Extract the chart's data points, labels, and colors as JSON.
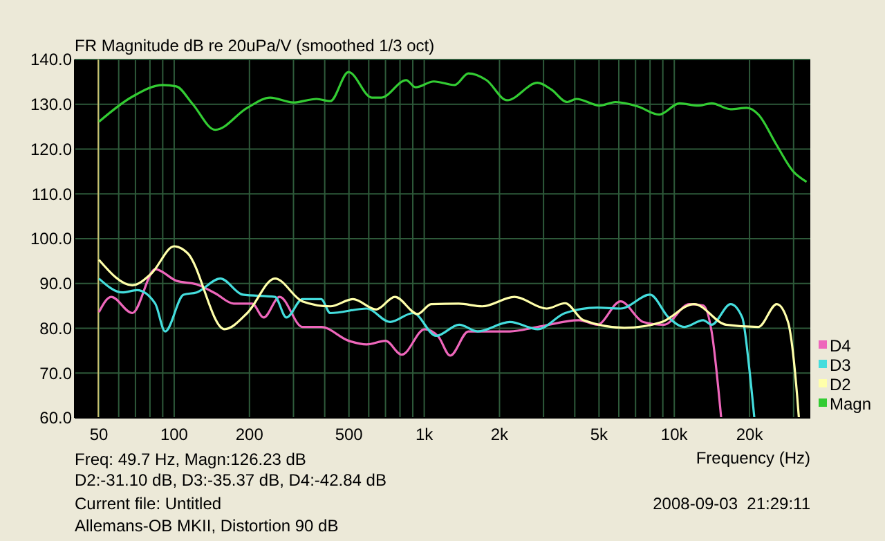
{
  "chart_data": {
    "type": "line",
    "title": "FR Magnitude dB re 20uPa/V (smoothed 1/3 oct)",
    "xlabel": "Frequency (Hz)",
    "log": "x",
    "xlim": [
      40,
      35000
    ],
    "xticks": [
      {
        "value": 40,
        "label": null
      },
      {
        "value": 50,
        "label": "50"
      },
      {
        "value": 60,
        "label": null
      },
      {
        "value": 70,
        "label": null
      },
      {
        "value": 80,
        "label": null
      },
      {
        "value": 90,
        "label": null
      },
      {
        "value": 100,
        "label": "100"
      },
      {
        "value": 200,
        "label": "200"
      },
      {
        "value": 300,
        "label": null
      },
      {
        "value": 400,
        "label": null
      },
      {
        "value": 500,
        "label": "500"
      },
      {
        "value": 600,
        "label": null
      },
      {
        "value": 700,
        "label": null
      },
      {
        "value": 800,
        "label": null
      },
      {
        "value": 900,
        "label": null
      },
      {
        "value": 1000,
        "label": "1k"
      },
      {
        "value": 2000,
        "label": "2k"
      },
      {
        "value": 3000,
        "label": null
      },
      {
        "value": 4000,
        "label": null
      },
      {
        "value": 5000,
        "label": "5k"
      },
      {
        "value": 6000,
        "label": null
      },
      {
        "value": 7000,
        "label": null
      },
      {
        "value": 8000,
        "label": null
      },
      {
        "value": 9000,
        "label": null
      },
      {
        "value": 10000,
        "label": "10k"
      },
      {
        "value": 20000,
        "label": "20k"
      },
      {
        "value": 30000,
        "label": null
      }
    ],
    "ylim": [
      60,
      140
    ],
    "yticks": [
      {
        "value": 60,
        "label": "60.0"
      },
      {
        "value": 70,
        "label": "70.0"
      },
      {
        "value": 80,
        "label": "80.0"
      },
      {
        "value": 90,
        "label": "90.0"
      },
      {
        "value": 100,
        "label": "100.0"
      },
      {
        "value": 110,
        "label": "110.0"
      },
      {
        "value": 120,
        "label": "120.0"
      },
      {
        "value": 130,
        "label": "130.0"
      },
      {
        "value": 140,
        "label": "140.0"
      }
    ],
    "grid": true,
    "legend": "bottom right",
    "line_style": "solid",
    "marker": "none",
    "ref_lines": [
      {
        "axis": "x",
        "value": 49.7,
        "color": "#c8c070"
      }
    ],
    "annotations": [
      "Freq: 49.7 Hz, Magn:126.23 dB",
      "D2:-31.10 dB, D3:-35.37 dB, D4:-42.84 dB",
      "Current file: Untitled",
      "Allemans-OB MKII, Distortion 90 dB",
      "2008-09-03  21:29:11"
    ],
    "series": [
      {
        "name": "D4",
        "color": "#ee66bb",
        "x": [
          50,
          56,
          68,
          84,
          102,
          123,
          146,
          173,
          205,
          228,
          264,
          326,
          387,
          499,
          589,
          700,
          813,
          1005,
          1140,
          1270,
          1502,
          2200,
          2840,
          4160,
          4925,
          6100,
          7520,
          9100,
          11500,
          13050,
          14100,
          15400
        ],
        "values": [
          83.6,
          87,
          83.4,
          93.2,
          90.6,
          89.8,
          87.8,
          85.5,
          85.5,
          82.4,
          87,
          80.3,
          80.3,
          77.2,
          76.4,
          77.2,
          74.1,
          79.8,
          78.1,
          73.9,
          79.3,
          79.3,
          80.3,
          81.8,
          80.8,
          86,
          81.4,
          80.8,
          85.4,
          85.1,
          79.3,
          60
        ]
      },
      {
        "name": "D3",
        "color": "#44dddd",
        "x": [
          50,
          62,
          71,
          84,
          92,
          109,
          123,
          153,
          188,
          253,
          281,
          326,
          387,
          421,
          589,
          730,
          903,
          1117,
          1380,
          1635,
          2200,
          2840,
          3660,
          4925,
          6100,
          8000,
          9490,
          11000,
          13050,
          14100,
          16800,
          18700,
          19950,
          20900
        ],
        "values": [
          91.1,
          88,
          88.5,
          85.5,
          79.3,
          87.5,
          88,
          91.1,
          87.5,
          87,
          82.4,
          86.5,
          86.5,
          83.4,
          84.4,
          81.4,
          83.4,
          78.3,
          80.8,
          79.3,
          81.4,
          79.8,
          83.4,
          84.6,
          84.4,
          87.5,
          82.4,
          80.3,
          81.8,
          80.8,
          85.4,
          82.4,
          71,
          60
        ]
      },
      {
        "name": "D2",
        "color": "#ffffaa",
        "x": [
          50,
          68,
          81,
          100,
          113,
          159,
          196,
          253,
          326,
          421,
          519,
          643,
          763,
          942,
          1066,
          1374,
          1706,
          2295,
          3087,
          3660,
          4330,
          6315,
          8913,
          12000,
          16100,
          21700,
          25700,
          28500,
          31000,
          31500
        ],
        "values": [
          95.3,
          89.6,
          92.2,
          98.3,
          96.8,
          79.8,
          83.4,
          91.1,
          86,
          84.9,
          86.5,
          84.2,
          87,
          83.2,
          85.4,
          85.5,
          84.9,
          87,
          84.4,
          85.6,
          81.8,
          80.1,
          81.4,
          85.4,
          80.8,
          80.3,
          85.4,
          81.4,
          64.9,
          60
        ]
      },
      {
        "name": "Magn",
        "color": "#33cc33",
        "x": [
          50,
          68,
          90,
          102,
          118,
          146,
          196,
          242,
          299,
          371,
          421,
          498,
          617,
          674,
          847,
          923,
          1093,
          1323,
          1502,
          1773,
          2145,
          2840,
          3222,
          3733,
          4060,
          5032,
          5820,
          7166,
          8700,
          10500,
          12500,
          14100,
          16800,
          19500,
          21700,
          25600,
          29800,
          33800
        ],
        "values": [
          126.1,
          131.7,
          134.3,
          134,
          130.2,
          124.3,
          129.2,
          131.5,
          130.4,
          131.2,
          130.7,
          137.2,
          131.5,
          131.5,
          135.4,
          133.8,
          135.1,
          134.3,
          136.9,
          135.4,
          130.9,
          134.8,
          133.3,
          130.5,
          131.2,
          129.7,
          130.5,
          129.5,
          127.7,
          130.2,
          129.7,
          130.2,
          128.9,
          129.2,
          127.7,
          121,
          115.1,
          112.7
        ]
      }
    ]
  }
}
